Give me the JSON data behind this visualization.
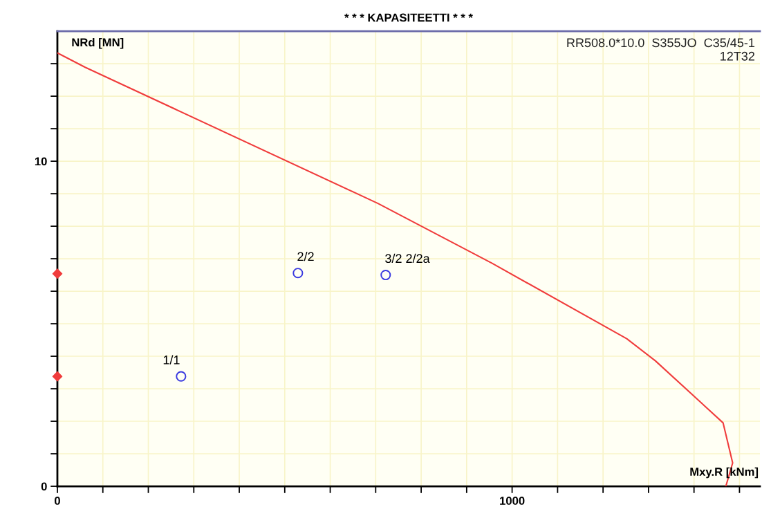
{
  "chart_data": {
    "type": "line",
    "title": "* * * KAPASITEETTI * * *",
    "xlabel": "Mxy.R [kNm]",
    "ylabel": "NRd [MN]",
    "series": [
      {
        "color": "#f03c3c",
        "marker": "none",
        "x": [
          0,
          61,
          705,
          956,
          1252,
          1315,
          1464,
          1485,
          1470
        ],
        "values": [
          13.33,
          12.89,
          8.7,
          6.86,
          4.54,
          3.86,
          1.95,
          0.72,
          0
        ]
      },
      {
        "type": "scatter",
        "color": "#3a3ae0",
        "marker": "circle",
        "x": [
          272,
          529,
          722
        ],
        "values": [
          3.38,
          6.56,
          6.5
        ]
      },
      {
        "type": "scatter",
        "color": "#f03c3c",
        "marker": "diamond",
        "x": [
          0,
          0
        ],
        "values": [
          3.38,
          6.54
        ]
      }
    ],
    "annotations": [
      {
        "text": "1/1",
        "x": 272,
        "y": 3.38
      },
      {
        "text": "2/2",
        "x": 529,
        "y": 6.56
      },
      {
        "text": "3/2 2/2a",
        "x": 722,
        "y": 6.5
      },
      "RR508.0*10.0  S355JO  C35/45-1\n12T32"
    ],
    "xlim": [
      0,
      1545
    ],
    "ylim": [
      0,
      14
    ],
    "xticks": [
      0,
      {
        "value": 100,
        "label": null
      },
      {
        "value": 200,
        "label": null
      },
      {
        "value": 300,
        "label": null
      },
      {
        "value": 400,
        "label": null
      },
      {
        "value": 500,
        "label": null
      },
      {
        "value": 600,
        "label": null
      },
      {
        "value": 700,
        "label": null
      },
      {
        "value": 800,
        "label": null
      },
      {
        "value": 900,
        "label": null
      },
      1000,
      {
        "value": 1100,
        "label": null
      },
      {
        "value": 1200,
        "label": null
      },
      {
        "value": 1300,
        "label": null
      },
      {
        "value": 1400,
        "label": null
      },
      {
        "value": 1500,
        "label": null
      }
    ],
    "yticks": [
      0,
      {
        "value": 1,
        "label": null
      },
      {
        "value": 2,
        "label": null
      },
      {
        "value": 3,
        "label": null
      },
      {
        "value": 4,
        "label": null
      },
      {
        "value": 5,
        "label": null
      },
      {
        "value": 6,
        "label": null
      },
      {
        "value": 7,
        "label": null
      },
      {
        "value": 8,
        "label": null
      },
      {
        "value": 9,
        "label": null
      },
      10,
      {
        "value": 11,
        "label": null
      },
      {
        "value": 12,
        "label": null
      },
      {
        "value": 13,
        "label": null
      }
    ],
    "grid": true,
    "legend": false
  }
}
